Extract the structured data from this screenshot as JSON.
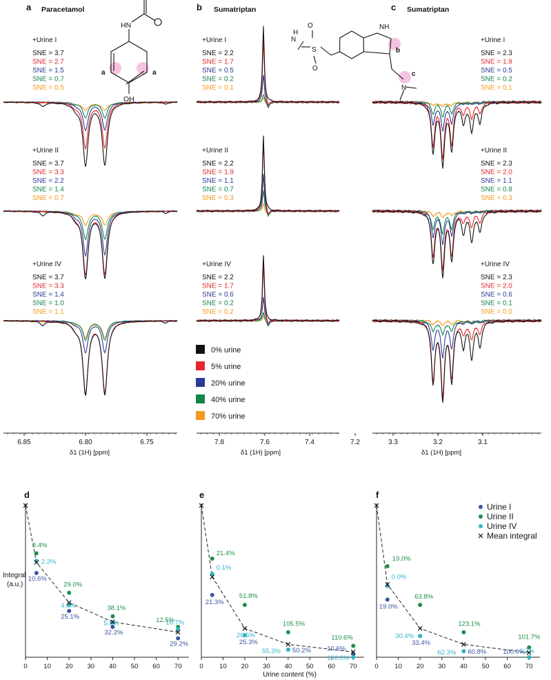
{
  "colors": {
    "urine_0": "#111111",
    "urine_5": "#e3262b",
    "urine_20": "#2b3a96",
    "urine_40": "#14854a",
    "urine_70": "#f49a1f",
    "urine_I": "#3a55a4",
    "urine_II": "#1f8f4a",
    "urine_IV": "#33b5c8",
    "highlight": "#f3b4d8"
  },
  "spectra": {
    "panels": [
      {
        "letter": "a",
        "title": "Paracetamol",
        "xlabel": "δ1 (1H) [ppm]",
        "xticks": [
          "6.85",
          "6.80",
          "6.75"
        ],
        "blocks": [
          {
            "label": "+Urine I",
            "sne": [
              "SNE = 3.7",
              "SNE = 2.7",
              "SNE = 1.5",
              "SNE = 0.7",
              "SNE = 0.5"
            ]
          },
          {
            "label": "+Urine II",
            "sne": [
              "SNE = 3.7",
              "SNE = 3.3",
              "SNE = 2.2",
              "SNE = 1.4",
              "SNE = 0.7"
            ]
          },
          {
            "label": "+Urine IV",
            "sne": [
              "SNE = 3.7",
              "SNE = 3.3",
              "SNE = 1.4",
              "SNE = 1.0",
              "SNE = 1.1"
            ]
          }
        ],
        "structure_labels": [
          "HN",
          "OH",
          "a",
          "a"
        ]
      },
      {
        "letter": "b",
        "title": "Sumatriptan",
        "xlabel": "δ1 (1H) [ppm]",
        "xticks": [
          "7.8",
          "7.6",
          "7.4",
          "7.2"
        ],
        "blocks": [
          {
            "label": "+Urine I",
            "sne": [
              "SNE = 2.2",
              "SNE = 1.7",
              "SNE = 0.5",
              "SNE = 0.2",
              "SNE = 0.1"
            ]
          },
          {
            "label": "+Urine II",
            "sne": [
              "SNE = 2.2",
              "SNE = 1.9",
              "SNE = 1.1",
              "SNE = 0.7",
              "SNE = 0.3"
            ]
          },
          {
            "label": "+Urine IV",
            "sne": [
              "SNE = 2.2",
              "SNE = 1.7",
              "SNE = 0.6",
              "SNE = 0.2",
              "SNE = 0.2"
            ]
          }
        ],
        "structure_labels": [
          "H",
          "N",
          "S",
          "O",
          "O",
          "NH",
          "N",
          "b",
          "c"
        ]
      },
      {
        "letter": "c",
        "title": "Sumatriptan",
        "xlabel": "δ1 (1H) [ppm]",
        "xticks": [
          "3.3",
          "3.2",
          "3.1"
        ],
        "blocks": [
          {
            "label": "+Urine I",
            "sne": [
              "SNE = 2.3",
              "SNE = 1.9",
              "SNE = 0.5",
              "SNE = 0.2",
              "SNE = 0.1"
            ]
          },
          {
            "label": "+Urine II",
            "sne": [
              "SNE = 2.3",
              "SNE = 2.0",
              "SNE = 1.1",
              "SNE = 0.8",
              "SNE = 0.3"
            ]
          },
          {
            "label": "+Urine IV",
            "sne": [
              "SNE = 2.3",
              "SNE = 2.0",
              "SNE = 0.6",
              "SNE = 0.1",
              "SNE = 0.0"
            ]
          }
        ]
      }
    ],
    "legend": [
      "0% urine",
      "5% urine",
      "20% urine",
      "40% urine",
      "70% urine"
    ]
  },
  "chart_data": [
    {
      "type": "scatter",
      "panel": "d",
      "xlabel": "Urine content (%)",
      "ylabel": "Integral (a.u.)",
      "xlim": [
        0,
        75
      ],
      "ylim": [
        0,
        1
      ],
      "xticks": [
        0,
        10,
        20,
        30,
        40,
        50,
        60,
        70
      ],
      "series": [
        {
          "name": "Urine I",
          "x": [
            5,
            20,
            40,
            70
          ],
          "y": [
            0.555,
            0.305,
            0.2,
            0.125
          ],
          "labels": [
            "10.6%",
            "25.1%",
            "32.2%",
            "29.2%"
          ]
        },
        {
          "name": "Urine II",
          "x": [
            5,
            20,
            40,
            70
          ],
          "y": [
            0.685,
            0.425,
            0.27,
            0.2
          ],
          "labels": [
            "8.4%",
            "29.0%",
            "38.1%",
            "12.5%"
          ]
        },
        {
          "name": "Urine IV",
          "x": [
            5,
            20,
            40,
            70
          ],
          "y": [
            0.635,
            0.345,
            0.23,
            0.185
          ],
          "labels": [
            "2.3%",
            "4.0%",
            "5.8%",
            "16.7%"
          ]
        },
        {
          "name": "Mean integral",
          "x": [
            0,
            5,
            20,
            40,
            70
          ],
          "y": [
            1.0,
            0.625,
            0.36,
            0.233,
            0.165
          ]
        }
      ]
    },
    {
      "type": "scatter",
      "panel": "e",
      "xlabel": "Urine content (%)",
      "xlim": [
        0,
        75
      ],
      "ylim": [
        0,
        1
      ],
      "xticks": [
        0,
        10,
        20,
        30,
        40,
        50,
        60,
        70
      ],
      "series": [
        {
          "name": "Urine I",
          "x": [
            5,
            20,
            40,
            70
          ],
          "y": [
            0.41,
            0.145,
            0.05,
            0.02
          ],
          "labels": [
            "21.3%",
            "25.3%",
            "50.2%",
            "10.6%"
          ]
        },
        {
          "name": "Urine II",
          "x": [
            5,
            20,
            40,
            70
          ],
          "y": [
            0.65,
            0.345,
            0.165,
            0.075
          ],
          "labels": [
            "21.4%",
            "51.8%",
            "105.5%",
            "110.6%"
          ]
        },
        {
          "name": "Urine IV",
          "x": [
            5,
            20,
            40,
            70
          ],
          "y": [
            0.55,
            0.145,
            0.05,
            0.0
          ],
          "labels": [
            "0.1%",
            "26.5%",
            "55.3%",
            "100.0%"
          ]
        },
        {
          "name": "Mean integral",
          "x": [
            0,
            5,
            20,
            40,
            70
          ],
          "y": [
            1.0,
            0.53,
            0.19,
            0.085,
            0.035
          ]
        }
      ]
    },
    {
      "type": "scatter",
      "panel": "f",
      "xlabel": "Urine content (%)",
      "xlim": [
        0,
        75
      ],
      "ylim": [
        0,
        1
      ],
      "xticks": [
        0,
        10,
        20,
        30,
        40,
        50,
        60,
        70
      ],
      "series": [
        {
          "name": "Urine I",
          "x": [
            5,
            20,
            40,
            70
          ],
          "y": [
            0.38,
            0.14,
            0.04,
            0.0
          ],
          "labels": [
            "19.0%",
            "33.4%",
            "60.8%",
            "100.0%"
          ]
        },
        {
          "name": "Urine II",
          "x": [
            5,
            20,
            40,
            70
          ],
          "y": [
            0.6,
            0.345,
            0.165,
            0.065
          ],
          "labels": [
            "19.0%",
            "63.8%",
            "123.1%",
            "101.7%"
          ]
        },
        {
          "name": "Urine IV",
          "x": [
            5,
            20,
            40,
            70
          ],
          "y": [
            0.47,
            0.14,
            0.04,
            0.0
          ],
          "labels": [
            "0.0%",
            "30.4%",
            "62.3%",
            "1.7%"
          ]
        },
        {
          "name": "Mean integral",
          "x": [
            0,
            5,
            20,
            40,
            70
          ],
          "y": [
            1.0,
            0.48,
            0.19,
            0.085,
            0.03
          ]
        }
      ]
    }
  ]
}
